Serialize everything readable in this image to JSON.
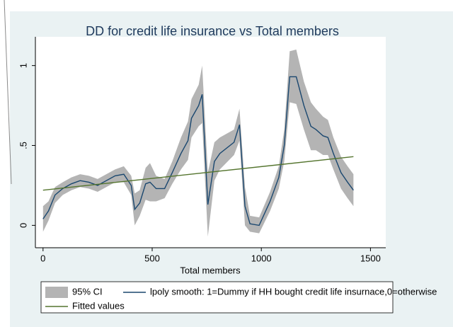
{
  "chart_data": {
    "type": "line",
    "title": "DD for credit life insurance vs Total members",
    "xlabel": "Total members",
    "xlim": [
      -35,
      1570
    ],
    "ylim": [
      -0.14,
      1.18
    ],
    "xticks": [
      0,
      500,
      1000,
      1500
    ],
    "yticks": [
      0,
      {
        "value": 0.5,
        "label": ".5"
      },
      1
    ],
    "series": [
      {
        "name": "95% CI",
        "type": "band",
        "color": "#b4b4b4",
        "x": [
          0,
          25,
          55,
          90,
          130,
          170,
          210,
          250,
          290,
          330,
          370,
          404,
          420,
          443,
          470,
          490,
          518,
          557,
          592,
          632,
          664,
          680,
          713,
          729,
          755,
          785,
          810,
          875,
          900,
          925,
          948,
          990,
          1040,
          1080,
          1105,
          1130,
          1160,
          1195,
          1227,
          1250,
          1283,
          1305,
          1330,
          1365,
          1395,
          1422
        ],
        "lower": [
          -0.04,
          0.03,
          0.14,
          0.19,
          0.22,
          0.24,
          0.23,
          0.21,
          0.24,
          0.27,
          0.27,
          0.19,
          0.0,
          0.06,
          0.16,
          0.15,
          0.15,
          0.17,
          0.26,
          0.35,
          0.41,
          0.55,
          0.62,
          0.64,
          -0.07,
          0.28,
          0.35,
          0.44,
          0.53,
          0.0,
          -0.04,
          -0.05,
          0.09,
          0.23,
          0.4,
          0.77,
          0.76,
          0.6,
          0.47,
          0.47,
          0.44,
          0.44,
          0.35,
          0.23,
          0.17,
          0.12
        ],
        "upper": [
          0.12,
          0.15,
          0.24,
          0.27,
          0.3,
          0.32,
          0.31,
          0.29,
          0.32,
          0.35,
          0.37,
          0.31,
          0.2,
          0.22,
          0.36,
          0.39,
          0.31,
          0.29,
          0.4,
          0.55,
          0.65,
          0.79,
          0.88,
          1.0,
          0.33,
          0.52,
          0.55,
          0.6,
          0.73,
          0.24,
          0.06,
          0.05,
          0.21,
          0.37,
          0.6,
          1.09,
          1.1,
          0.9,
          0.77,
          0.73,
          0.68,
          0.66,
          0.55,
          0.43,
          0.37,
          0.32
        ]
      },
      {
        "name": "lpoly smooth: 1=Dummy if HH bought credit life insurnace,0=otherwise",
        "type": "line",
        "color": "#1a476f",
        "x": [
          0,
          25,
          55,
          90,
          130,
          170,
          210,
          250,
          290,
          330,
          370,
          404,
          420,
          443,
          470,
          490,
          518,
          557,
          592,
          632,
          664,
          680,
          713,
          729,
          755,
          785,
          810,
          875,
          900,
          925,
          948,
          990,
          1040,
          1080,
          1105,
          1130,
          1160,
          1195,
          1227,
          1250,
          1283,
          1305,
          1330,
          1365,
          1395,
          1422
        ],
        "values": [
          0.04,
          0.09,
          0.19,
          0.23,
          0.26,
          0.28,
          0.27,
          0.25,
          0.28,
          0.31,
          0.32,
          0.25,
          0.1,
          0.14,
          0.26,
          0.27,
          0.23,
          0.23,
          0.33,
          0.45,
          0.53,
          0.67,
          0.75,
          0.82,
          0.13,
          0.4,
          0.45,
          0.52,
          0.63,
          0.12,
          0.01,
          0.0,
          0.15,
          0.3,
          0.5,
          0.93,
          0.93,
          0.75,
          0.62,
          0.6,
          0.56,
          0.55,
          0.45,
          0.33,
          0.27,
          0.22
        ]
      },
      {
        "name": "Fitted values",
        "type": "line",
        "color": "#55752f",
        "x": [
          0,
          1422
        ],
        "values": [
          0.22,
          0.43
        ]
      }
    ]
  }
}
